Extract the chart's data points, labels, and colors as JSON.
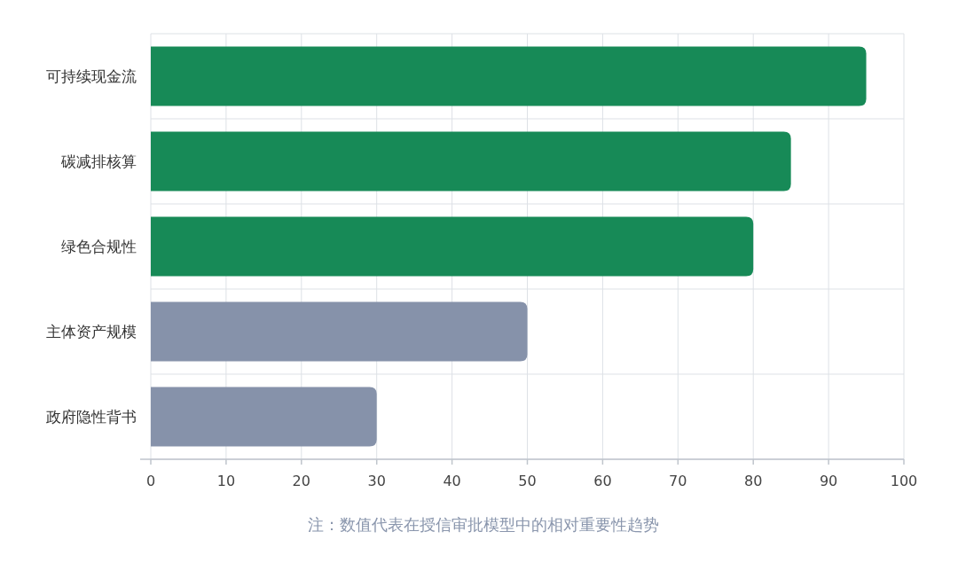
{
  "chart_data": {
    "type": "bar",
    "orientation": "horizontal",
    "categories": [
      "可持续现金流",
      "碳减排核算",
      "绿色合规性",
      "主体资产规模",
      "政府隐性背书"
    ],
    "values": [
      95,
      85,
      80,
      50,
      30
    ],
    "colors": [
      "#178a57",
      "#178a57",
      "#178a57",
      "#8692aa",
      "#8692aa"
    ],
    "xlim": [
      0,
      100
    ],
    "xticks": [
      0,
      10,
      20,
      30,
      40,
      50,
      60,
      70,
      80,
      90,
      100
    ],
    "grid": true,
    "annotations": [
      "注：数值代表在授信审批模型中的相对重要性趋势"
    ]
  }
}
